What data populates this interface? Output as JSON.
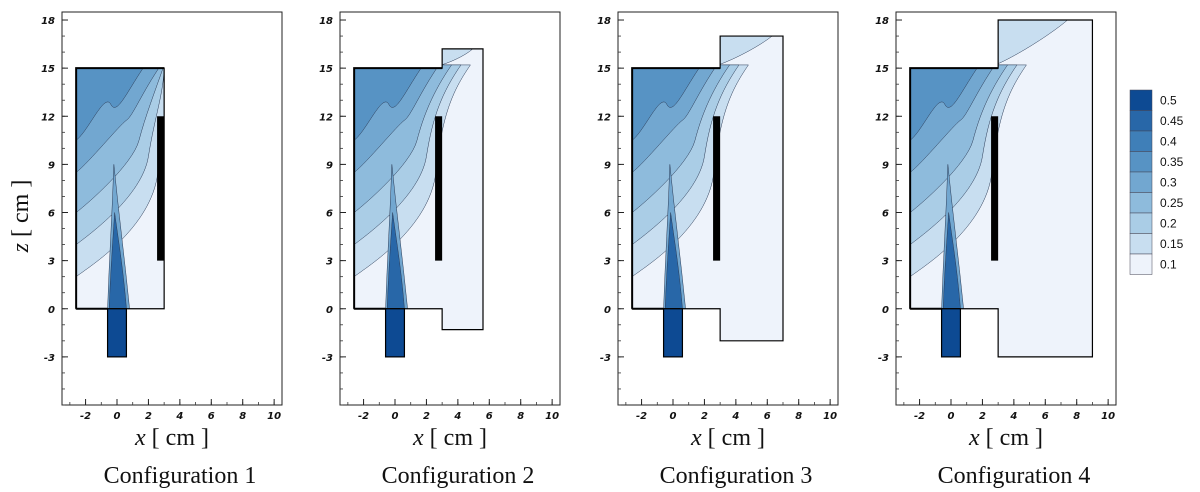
{
  "chart_data": {
    "type": "heatmap",
    "xlabel_var": "x",
    "xlabel_unit": "[ cm ]",
    "ylabel_var": "z",
    "ylabel_unit": "[ cm ]",
    "xticks": [
      "-2",
      "0",
      "2",
      "4",
      "6",
      "8",
      "10"
    ],
    "yticks": [
      "-3",
      "0",
      "3",
      "6",
      "9",
      "12",
      "15",
      "18"
    ],
    "xlim": [
      -3.5,
      10.5
    ],
    "ylim": [
      -6,
      18.5
    ],
    "colorbar": {
      "levels": [
        "0.5",
        "0.45",
        "0.4",
        "0.35",
        "0.3",
        "0.25",
        "0.2",
        "0.15",
        "0.1"
      ],
      "colors": [
        "#0d4a93",
        "#2867a8",
        "#3f7fb8",
        "#5793c4",
        "#72a7d0",
        "#8ebbdc",
        "#aacde6",
        "#c8def0",
        "#eef3fb"
      ]
    },
    "panels": [
      {
        "caption": "Configuration 1",
        "right_box": {
          "x_max": 3.0,
          "z_top": 15.0,
          "z_bottom": 0.0
        }
      },
      {
        "caption": "Configuration 2",
        "right_box": {
          "x_max": 5.6,
          "z_top": 16.2,
          "z_bottom": -1.3
        }
      },
      {
        "caption": "Configuration 3",
        "right_box": {
          "x_max": 7.0,
          "z_top": 17.0,
          "z_bottom": -2.0
        }
      },
      {
        "caption": "Configuration 4",
        "right_box": {
          "x_max": 9.0,
          "z_top": 18.0,
          "z_bottom": -3.0
        }
      }
    ]
  }
}
